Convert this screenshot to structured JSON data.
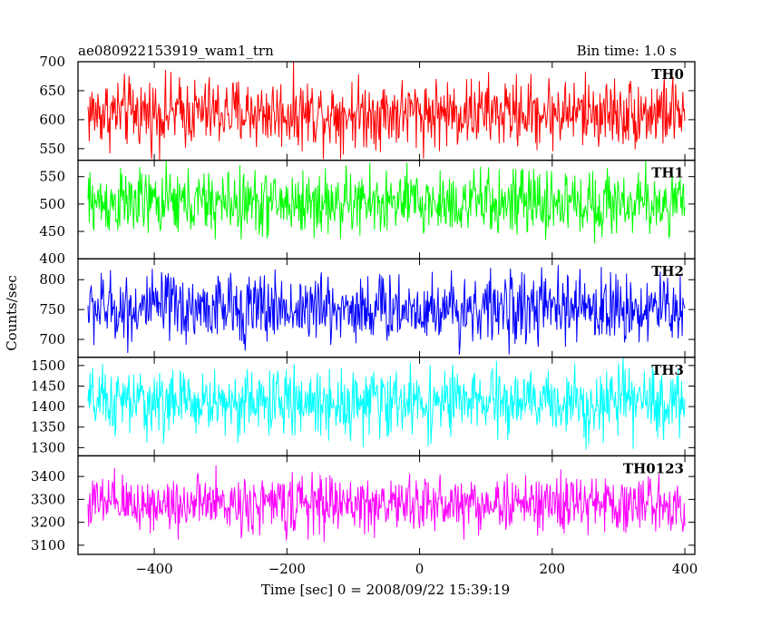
{
  "header": {
    "left_title": "ae080922153919_wam1_trn",
    "right_title": "Bin time: 1.0 s"
  },
  "xaxis": {
    "label": "Time [sec] 0 = 2008/09/22 15:39:19",
    "range": [
      -515,
      415
    ],
    "ticks": [
      -400,
      -200,
      0,
      200,
      400
    ],
    "tick_labels": [
      "−400",
      "−200",
      "0",
      "200",
      "400"
    ]
  },
  "yaxis": {
    "label": "Counts/sec"
  },
  "chart_data": {
    "type": "line",
    "bin_time_s": 1.0,
    "x_start": -500,
    "x_end": 400,
    "series": [
      {
        "name": "TH0",
        "color": "#ff0000",
        "ylim": [
          530,
          700
        ],
        "ticks": [
          550,
          600,
          650,
          700
        ],
        "tick_labels": [
          "550",
          "600",
          "650",
          "700"
        ],
        "mean": 612,
        "spread": 30
      },
      {
        "name": "TH1",
        "color": "#00ff00",
        "ylim": [
          400,
          580
        ],
        "ticks": [
          400,
          450,
          500,
          550
        ],
        "tick_labels": [
          "400",
          "450",
          "500",
          "550"
        ],
        "mean": 502,
        "spread": 30
      },
      {
        "name": "TH2",
        "color": "#0000ff",
        "ylim": [
          670,
          835
        ],
        "ticks": [
          700,
          750,
          800
        ],
        "tick_labels": [
          "700",
          "750",
          "800"
        ],
        "mean": 752,
        "spread": 29
      },
      {
        "name": "TH3",
        "color": "#00ffff",
        "ylim": [
          1280,
          1520
        ],
        "ticks": [
          1300,
          1350,
          1400,
          1450,
          1500
        ],
        "tick_labels": [
          "1300",
          "1350",
          "1400",
          "1450",
          "1500"
        ],
        "mean": 1410,
        "spread": 40
      },
      {
        "name": "TH0123",
        "color": "#ff00ff",
        "ylim": [
          3060,
          3490
        ],
        "ticks": [
          3100,
          3200,
          3300,
          3400
        ],
        "tick_labels": [
          "3100",
          "3200",
          "3300",
          "3400"
        ],
        "mean": 3280,
        "spread": 62
      }
    ]
  }
}
